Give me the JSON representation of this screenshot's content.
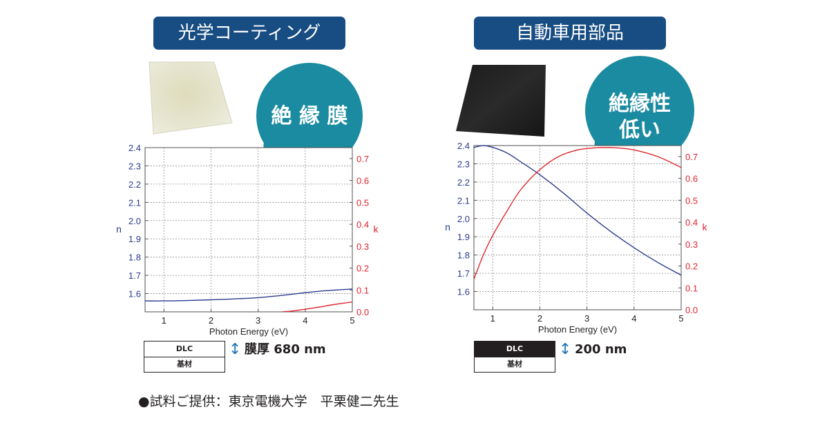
{
  "panels": {
    "left": {
      "title": "光学コーティング",
      "bubble": "絶 縁 膜",
      "layers": {
        "top": "DLC",
        "bottom": "基材"
      },
      "thickness": "膜厚 680 nm"
    },
    "right": {
      "title": "自動車用部品",
      "bubble_line1": "絶縁性",
      "bubble_line2": "低い",
      "layers": {
        "top": "DLC",
        "bottom": "基材"
      },
      "thickness": "200 nm"
    }
  },
  "credit": "●試料ご提供：東京電機大学　平栗健二先生",
  "icons": {
    "thickness_arrow": "double-arrow-icon"
  },
  "colors": {
    "title_bg": "#174d82",
    "bubble": "#1a8ba0",
    "n_axis": "#2b3a8c",
    "k_axis": "#e0242b",
    "grid": "#8c8c8c"
  },
  "chart_data": [
    {
      "type": "line",
      "xlabel": "Photon Energy (eV)",
      "ylabel": "n",
      "y2label": "k",
      "xlim": [
        0.6,
        5
      ],
      "ylim": [
        1.5,
        2.4
      ],
      "y2lim": [
        0.0,
        0.75
      ],
      "x_ticks": [
        1,
        2,
        3,
        4,
        5
      ],
      "y_ticks": [
        "1.6",
        "1.7",
        "1.8",
        "1.9",
        "2.0",
        "2.1",
        "2.2",
        "2.3",
        "2.4"
      ],
      "y2_ticks": [
        "0.0",
        "0.1",
        "0.2",
        "0.3",
        "0.4",
        "0.5",
        "0.6",
        "0.7"
      ],
      "grid": true,
      "series": [
        {
          "name": "n",
          "axis": "left",
          "x": [
            0.6,
            1.0,
            1.5,
            2.0,
            2.5,
            3.0,
            3.5,
            4.0,
            4.5,
            5.0
          ],
          "values": [
            1.56,
            1.56,
            1.562,
            1.566,
            1.571,
            1.578,
            1.59,
            1.605,
            1.617,
            1.625
          ]
        },
        {
          "name": "k",
          "axis": "right",
          "x": [
            3.5,
            3.7,
            4.0,
            4.3,
            4.6,
            5.0
          ],
          "values": [
            0.0,
            0.003,
            0.012,
            0.022,
            0.033,
            0.045
          ]
        }
      ]
    },
    {
      "type": "line",
      "xlabel": "Photon Energy (eV)",
      "ylabel": "n",
      "y2label": "k",
      "xlim": [
        0.6,
        5
      ],
      "ylim": [
        1.5,
        2.4
      ],
      "y2lim": [
        0.0,
        0.75
      ],
      "x_ticks": [
        1,
        2,
        3,
        4,
        5
      ],
      "y_ticks": [
        "1.6",
        "1.7",
        "1.8",
        "1.9",
        "2.0",
        "2.1",
        "2.2",
        "2.3",
        "2.4"
      ],
      "y2_ticks": [
        "0.0",
        "0.1",
        "0.2",
        "0.3",
        "0.4",
        "0.5",
        "0.6",
        "0.7"
      ],
      "grid": true,
      "series": [
        {
          "name": "n",
          "axis": "left",
          "x": [
            0.6,
            0.8,
            1.0,
            1.3,
            1.6,
            2.0,
            2.5,
            3.0,
            3.5,
            4.0,
            4.5,
            5.0
          ],
          "values": [
            2.39,
            2.4,
            2.39,
            2.36,
            2.31,
            2.24,
            2.14,
            2.03,
            1.93,
            1.84,
            1.76,
            1.69
          ]
        },
        {
          "name": "k",
          "axis": "right",
          "x": [
            0.6,
            0.8,
            1.0,
            1.3,
            1.6,
            2.0,
            2.4,
            2.8,
            3.2,
            3.6,
            4.0,
            4.5,
            5.0
          ],
          "values": [
            0.14,
            0.25,
            0.34,
            0.45,
            0.55,
            0.64,
            0.7,
            0.73,
            0.74,
            0.74,
            0.73,
            0.7,
            0.65
          ]
        }
      ]
    }
  ]
}
